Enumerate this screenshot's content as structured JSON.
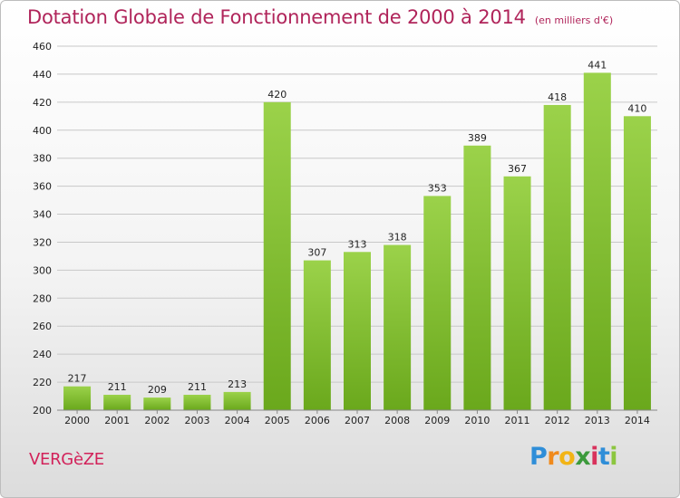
{
  "header": {
    "title": "Dotation Globale de Fonctionnement de 2000 à 2014",
    "unit": "(en milliers d'€)"
  },
  "footer": {
    "commune": "VERGèZE"
  },
  "logo": {
    "text": "Proxiti",
    "letters": [
      "P",
      "r",
      "o",
      "x",
      "i",
      "t",
      "i"
    ],
    "colors": [
      "#2f8ed8",
      "#f08a1c",
      "#f2b416",
      "#3c9a3c",
      "#d8325c",
      "#2f8ed8",
      "#8cc63f"
    ]
  },
  "colors": {
    "bar_top": "#9bd24a",
    "bar_bottom": "#6aa81c",
    "grid": "#c8c8c8",
    "axis_text": "#222222",
    "title": "#b0245a"
  },
  "chart_data": {
    "type": "bar",
    "title": "Dotation Globale de Fonctionnement de 2000 à 2014",
    "subtitle": "(en milliers d'€)",
    "categories": [
      "2000",
      "2001",
      "2002",
      "2003",
      "2004",
      "2005",
      "2006",
      "2007",
      "2008",
      "2009",
      "2010",
      "2011",
      "2012",
      "2013",
      "2014"
    ],
    "values": [
      217,
      211,
      209,
      211,
      213,
      420,
      307,
      313,
      318,
      353,
      389,
      367,
      418,
      441,
      410
    ],
    "ylim": [
      200,
      460
    ],
    "yticks": [
      200,
      220,
      240,
      260,
      280,
      300,
      320,
      340,
      360,
      380,
      400,
      420,
      440,
      460
    ],
    "grid": true,
    "xlabel": "",
    "ylabel": ""
  }
}
